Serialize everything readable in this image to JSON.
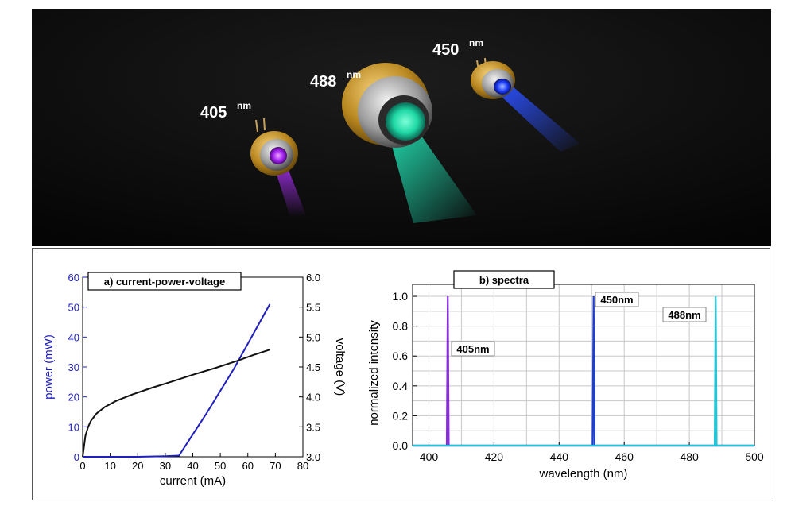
{
  "photo": {
    "labels": [
      {
        "value": "405",
        "unit": "nm",
        "color": "#a020f0"
      },
      {
        "value": "488",
        "unit": "nm",
        "color": "#20e8b8"
      },
      {
        "value": "450",
        "unit": "nm",
        "color": "#1a3cff"
      }
    ]
  },
  "chart_data": [
    {
      "type": "line",
      "title": "a) current-power-voltage",
      "xlabel": "current (mA)",
      "ylabel": "power (mW)",
      "y2label": "voltage (V)",
      "xlim": [
        0,
        80
      ],
      "ylim": [
        0,
        60
      ],
      "y2lim": [
        3.0,
        6.0
      ],
      "x_ticks": [
        "0",
        "10",
        "20",
        "30",
        "40",
        "50",
        "60",
        "70",
        "80"
      ],
      "y_ticks": [
        "0",
        "10",
        "20",
        "30",
        "40",
        "50",
        "60"
      ],
      "y2_ticks": [
        "3.0",
        "3.5",
        "4.0",
        "4.5",
        "5.0",
        "5.5",
        "6.0"
      ],
      "ylabel_color": "#1f1fbf",
      "grid": false,
      "series": [
        {
          "axis": "left",
          "color": "#1f1fbf",
          "x": [
            0,
            15,
            20,
            25,
            30,
            35,
            45,
            55,
            68
          ],
          "y": [
            0,
            0,
            0,
            0.1,
            0.2,
            0.4,
            14.5,
            29.5,
            51
          ]
        },
        {
          "axis": "right",
          "color": "#111111",
          "x": [
            0,
            1,
            2,
            3,
            5,
            8,
            12,
            18,
            25,
            32,
            40,
            48,
            56,
            62,
            68
          ],
          "y": [
            3.0,
            3.35,
            3.5,
            3.6,
            3.72,
            3.83,
            3.93,
            4.04,
            4.15,
            4.25,
            4.37,
            4.48,
            4.6,
            4.7,
            4.79
          ]
        }
      ]
    },
    {
      "type": "line",
      "title": "b) spectra",
      "xlabel": "wavelength (nm)",
      "ylabel": "normalized intensity",
      "xlim": [
        395,
        500
      ],
      "ylim": [
        0.0,
        1.08
      ],
      "x_ticks": [
        "400",
        "420",
        "440",
        "460",
        "480",
        "500"
      ],
      "y_ticks": [
        "0.0",
        "0.2",
        "0.4",
        "0.6",
        "0.8",
        "1.0"
      ],
      "grid": true,
      "series": [
        {
          "color": "#8a2be2",
          "x": [
            395,
            405.5,
            405.8,
            406.1,
            500
          ],
          "y": [
            0,
            0,
            1.0,
            0,
            0
          ]
        },
        {
          "color": "#1f3fd0",
          "x": [
            395,
            450.3,
            450.6,
            450.9,
            500
          ],
          "y": [
            0,
            0,
            1.0,
            0,
            0
          ]
        },
        {
          "color": "#1fc6d8",
          "x": [
            395,
            487.8,
            488.1,
            488.4,
            500
          ],
          "y": [
            0,
            0,
            1.0,
            0,
            0
          ]
        }
      ],
      "annotations": [
        "405nm",
        "450nm",
        "488nm"
      ]
    }
  ]
}
